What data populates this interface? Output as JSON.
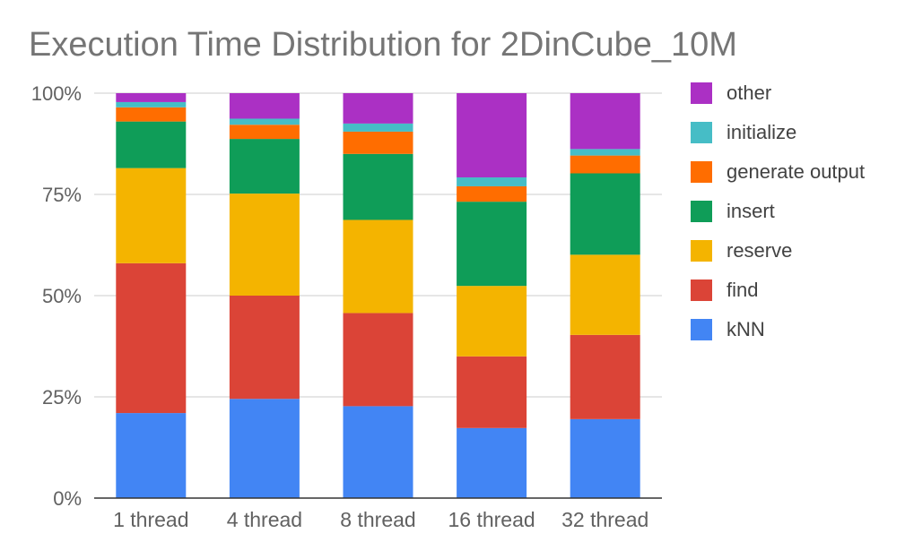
{
  "chart_data": {
    "type": "bar",
    "stacked": true,
    "percent": true,
    "title": "Execution Time Distribution for 2DinCube_10M",
    "xlabel": "",
    "ylabel": "",
    "categories": [
      "1 thread",
      "4 thread",
      "8 thread",
      "16 thread",
      "32 thread"
    ],
    "y_ticks": [
      "0%",
      "25%",
      "50%",
      "75%",
      "100%"
    ],
    "ylim": [
      0,
      100
    ],
    "grid": true,
    "legend_position": "right",
    "series": [
      {
        "name": "kNN",
        "color": "#4285F4",
        "values": [
          21,
          24.5,
          22.7,
          17.3,
          19.5
        ]
      },
      {
        "name": "find",
        "color": "#DB4437",
        "values": [
          37,
          25.5,
          23,
          17.7,
          20.8
        ]
      },
      {
        "name": "reserve",
        "color": "#F4B400",
        "values": [
          23.5,
          25.2,
          23,
          17.4,
          19.8
        ]
      },
      {
        "name": "insert",
        "color": "#0F9D58",
        "values": [
          11.5,
          13.5,
          16.3,
          20.8,
          20.1
        ]
      },
      {
        "name": "generate output",
        "color": "#FF6D00",
        "values": [
          3.5,
          3.5,
          5.5,
          3.8,
          4.4
        ]
      },
      {
        "name": "initialize",
        "color": "#46BDC6",
        "values": [
          1.3,
          1.5,
          2,
          2.2,
          1.6
        ]
      },
      {
        "name": "other",
        "color": "#AB30C4",
        "values": [
          2.2,
          6.3,
          7.5,
          20.8,
          13.8
        ]
      }
    ]
  }
}
